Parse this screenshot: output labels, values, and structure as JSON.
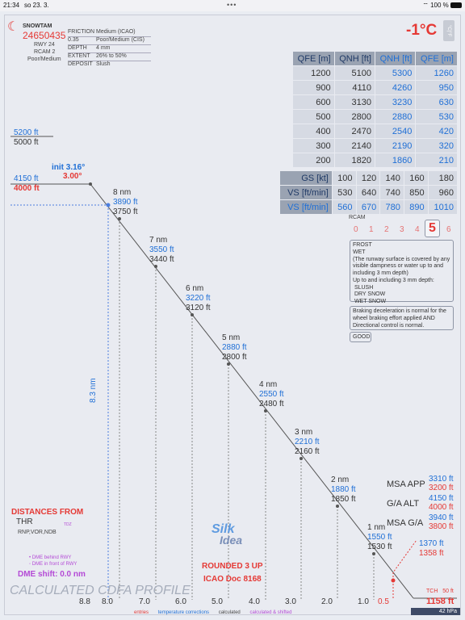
{
  "status": {
    "time": "21:34",
    "date": "so 23. 3.",
    "dots": "•••",
    "battery": "100 %"
  },
  "snowtam": {
    "title": "SNOWTAM",
    "id": "24650435",
    "rwy": "RWY 24",
    "rcam": "RCAM 2",
    "cond": "Poor/Medium",
    "rows": [
      {
        "k": "FRICTION",
        "v": "Medium (ICAO)"
      },
      {
        "k": "0.35",
        "v": "Poor/Medium (CIS)"
      },
      {
        "k": "DEPTH",
        "v": "4 mm"
      },
      {
        "k": "EXTENT",
        "v": "26% to 50%"
      },
      {
        "k": "DEPOSIT",
        "v": "Slush"
      }
    ]
  },
  "temperature": "-1°C",
  "units_toggle": "°C|°F",
  "qfe_table": {
    "headers": [
      "QFE [m]",
      "QNH [ft]",
      "QNH [ft]",
      "QFE [m]"
    ],
    "rows": [
      [
        "1200",
        "5100",
        "5300",
        "1260"
      ],
      [
        "900",
        "4110",
        "4260",
        "950"
      ],
      [
        "600",
        "3130",
        "3230",
        "630"
      ],
      [
        "500",
        "2800",
        "2880",
        "530"
      ],
      [
        "400",
        "2470",
        "2540",
        "420"
      ],
      [
        "300",
        "2140",
        "2190",
        "320"
      ],
      [
        "200",
        "1820",
        "1860",
        "210"
      ]
    ]
  },
  "gs_table": {
    "gs_label": "GS [kt]",
    "gs": [
      "100",
      "120",
      "140",
      "160",
      "180"
    ],
    "vs_label": "VS [ft/min]",
    "vs": [
      "530",
      "640",
      "740",
      "850",
      "960"
    ],
    "vs2_label": "VS [ft/min]",
    "vs2": [
      "560",
      "670",
      "780",
      "890",
      "1010"
    ]
  },
  "rcam": {
    "label": "RCAM",
    "values": [
      "0",
      "1",
      "2",
      "3",
      "4",
      "5",
      "6"
    ],
    "selected": "5",
    "description": [
      "FROST",
      "WET",
      "(The runway surface is covered by any",
      "visible dampness or water up to and",
      "including 3 mm depth)",
      "Up to and including 3 mm depth:",
      " SLUSH",
      " DRY SNOW",
      " WET SNOW"
    ],
    "braking": [
      "Braking deceleration is normal for the",
      "wheel braking effort applied AND",
      "Directional control is normal."
    ],
    "braking_level": "GOOD"
  },
  "left_alts": {
    "top_blue": "5200 ft",
    "top_gray": "5000 ft",
    "fap_blue": "4150 ft",
    "fap_red": "4000 ft"
  },
  "init": {
    "label": "init 3.16°",
    "angle": "3.00°"
  },
  "profile_points": [
    {
      "nm": "8 nm",
      "blue": "3890 ft",
      "gray": "3750 ft"
    },
    {
      "nm": "7 nm",
      "blue": "3550 ft",
      "gray": "3440 ft"
    },
    {
      "nm": "6 nm",
      "blue": "3220 ft",
      "gray": "3120 ft"
    },
    {
      "nm": "5 nm",
      "blue": "2880 ft",
      "gray": "2800 ft"
    },
    {
      "nm": "4 nm",
      "blue": "2550 ft",
      "gray": "2480 ft"
    },
    {
      "nm": "3 nm",
      "blue": "2210 ft",
      "gray": "2160 ft"
    },
    {
      "nm": "2 nm",
      "blue": "1880 ft",
      "gray": "1850 ft"
    },
    {
      "nm": "1 nm",
      "blue": "1550 ft",
      "gray": "1530 ft"
    }
  ],
  "vertical_dist_label": "8.3 nm",
  "x_ticks": [
    "8.8",
    "8.0",
    "7.0",
    "6.0",
    "5.0",
    "4.0",
    "3.0",
    "2.0",
    "1.0",
    "0.5"
  ],
  "msa": {
    "app_label": "MSA APP",
    "app_blue": "3310 ft",
    "app_red": "3200 ft",
    "ga_label": "G/A ALT",
    "ga_blue": "4150 ft",
    "ga_red": "4000 ft",
    "msaga_label": "MSA G/A",
    "msaga_blue": "3940 ft",
    "msaga_red": "3800 ft"
  },
  "half_nm": {
    "blue": "1370 ft",
    "red": "1358 ft"
  },
  "tch": {
    "label": "TCH",
    "value": "50 ft",
    "alt": "1158 ft",
    "hpa": "42 hPa"
  },
  "distances": {
    "title": "DISTANCES FROM",
    "thr": "THR",
    "tdz": "TDZ",
    "modes": "RNP,VOR,NDB",
    "dme_behind": "DME behind RWY",
    "dme_front": "DME in front of RWY",
    "dme_shift": "DME shift: 0.0 nm"
  },
  "logo": {
    "line1": "Silk",
    "line2": "Idea"
  },
  "rounded": {
    "line1": "ROUNDED 3 UP",
    "line2": "ICAO Doc 8168"
  },
  "footer_title": "CALCULATED CDFA PROFILE",
  "legend": [
    "entries",
    "temperature corrections",
    "calculated",
    "calculated & shifted"
  ],
  "colors": {
    "red": "#e53935",
    "blue": "#1f6fd6",
    "gray": "#333333",
    "purple": "#b44ad6",
    "header": "#9aa3b2"
  }
}
